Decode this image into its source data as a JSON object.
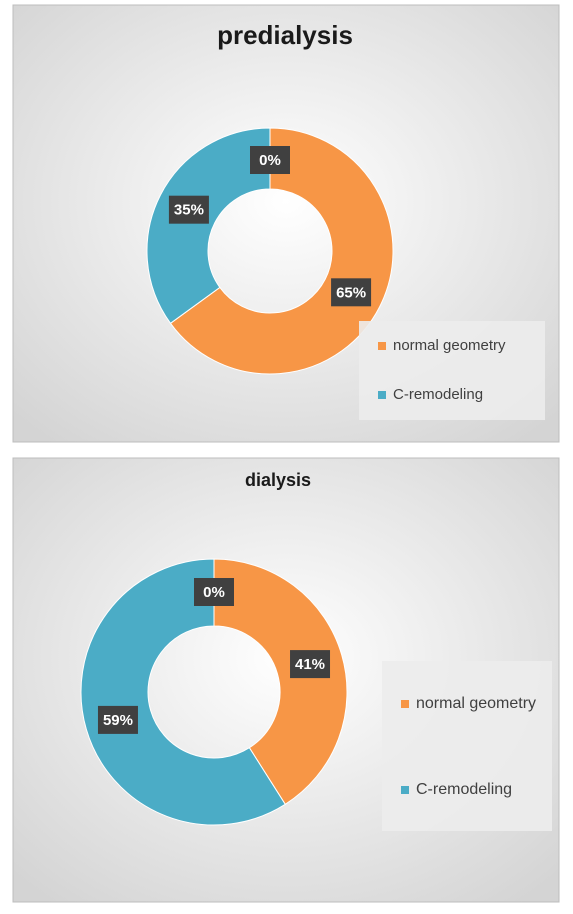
{
  "chart_data": [
    {
      "type": "pie",
      "title": "predialysis",
      "categories": [
        "normal geometry",
        "C-remodeling",
        null
      ],
      "values": [
        65,
        35,
        0
      ],
      "value_labels": [
        "65%",
        "35%",
        "0%"
      ],
      "colors": [
        "#f79646",
        "#4bacc6",
        "#9bbb59"
      ],
      "legend": "right"
    },
    {
      "type": "pie",
      "title": "dialysis",
      "categories": [
        "normal geometry",
        "C-remodeling",
        null
      ],
      "values": [
        41,
        59,
        0
      ],
      "value_labels": [
        "41%",
        "59%",
        "0%"
      ],
      "colors": [
        "#f79646",
        "#4bacc6",
        "#9bbb59"
      ],
      "legend": "right"
    }
  ]
}
